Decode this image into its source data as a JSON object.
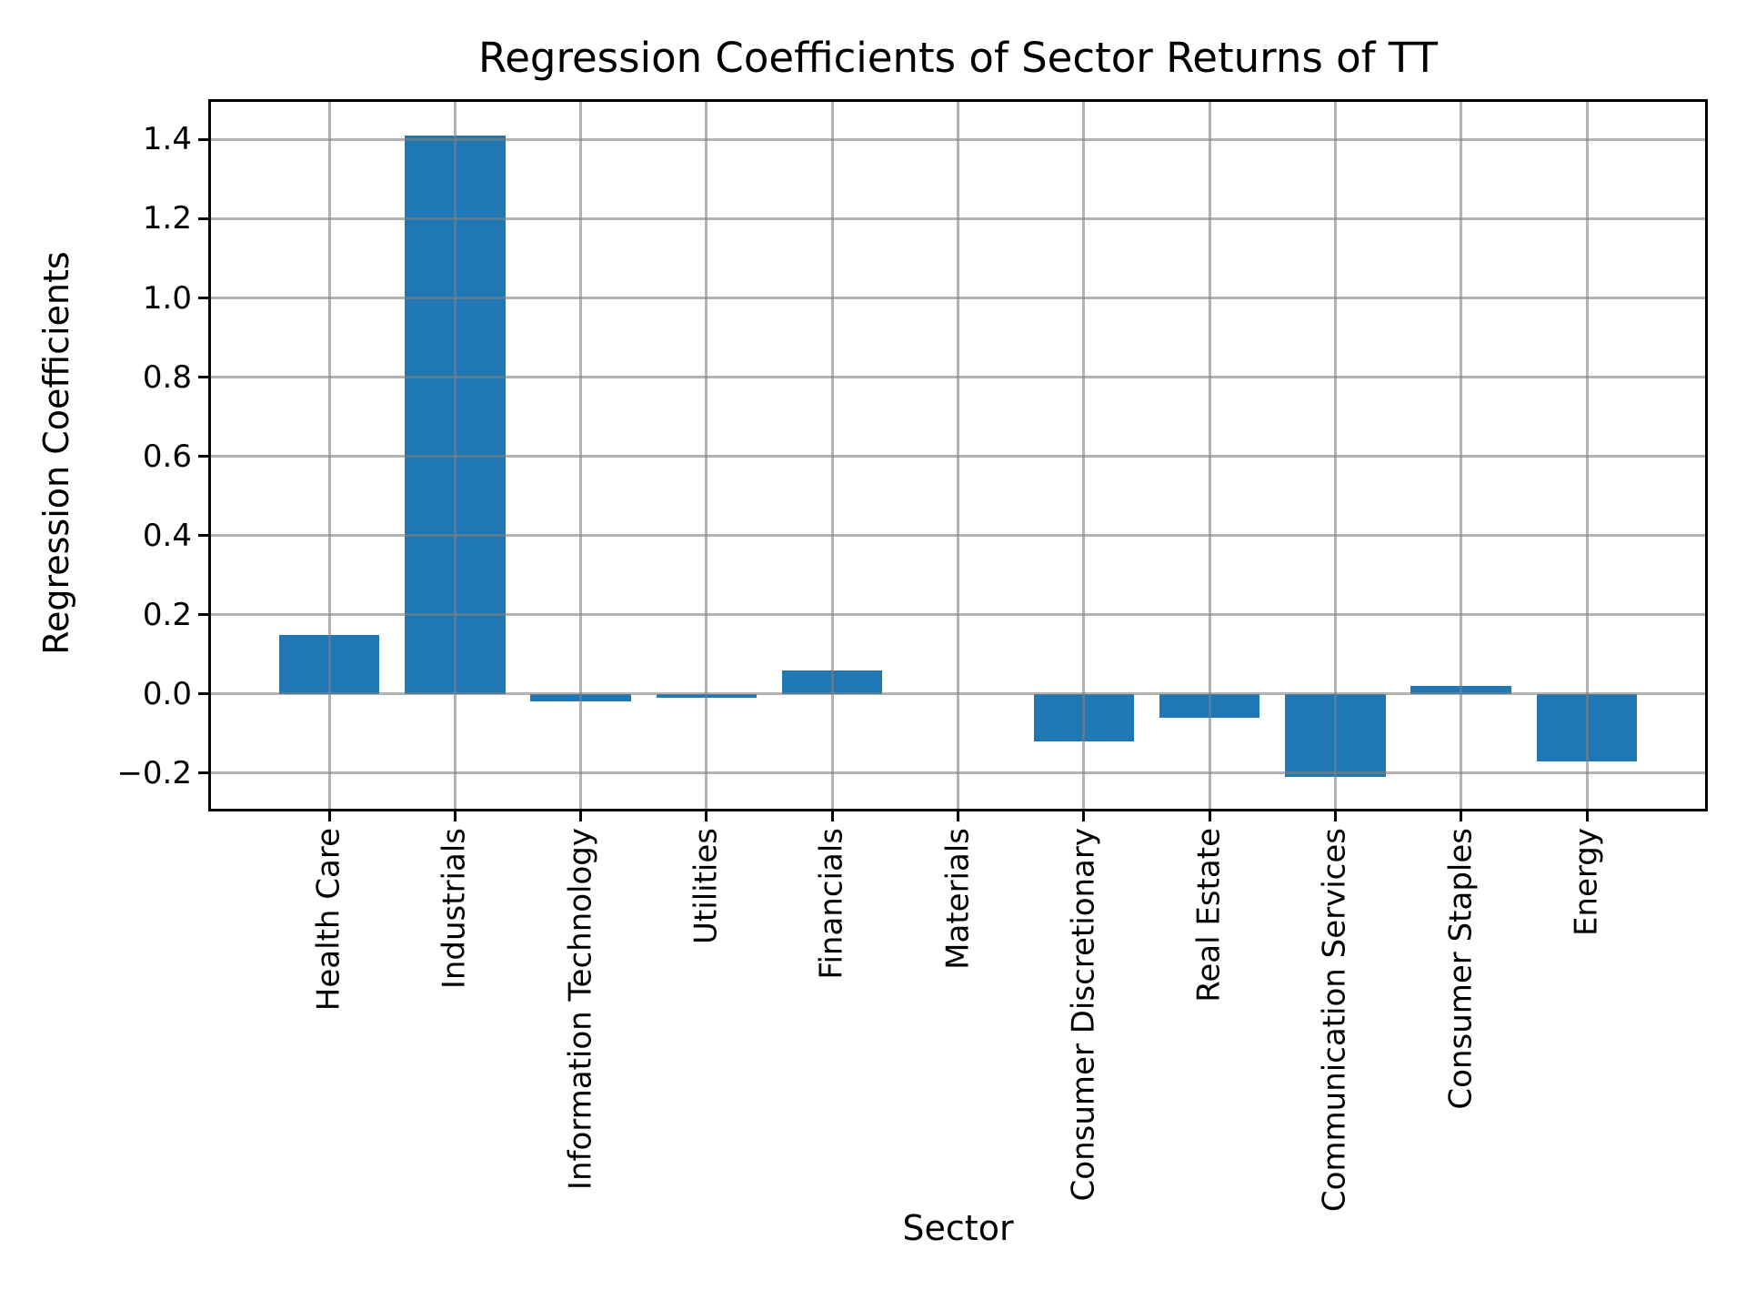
{
  "chart_data": {
    "type": "bar",
    "title": "Regression Coefficients of Sector Returns of TT",
    "xlabel": "Sector",
    "ylabel": "Regression Coefficients",
    "categories": [
      "Health Care",
      "Industrials",
      "Information Technology",
      "Utilities",
      "Financials",
      "Materials",
      "Consumer Discretionary",
      "Real Estate",
      "Communication Services",
      "Consumer Staples",
      "Energy"
    ],
    "values": [
      0.15,
      1.41,
      -0.02,
      -0.01,
      0.06,
      0.0,
      -0.12,
      -0.06,
      -0.21,
      0.02,
      -0.17
    ],
    "yticks": [
      -0.2,
      0.0,
      0.2,
      0.4,
      0.6,
      0.8,
      1.0,
      1.2,
      1.4
    ],
    "ytick_labels": [
      "−0.2",
      "0.0",
      "0.2",
      "0.4",
      "0.6",
      "0.8",
      "1.0",
      "1.2",
      "1.4"
    ],
    "ylim": [
      -0.29,
      1.495
    ],
    "grid": true,
    "legend_position": "none",
    "bar_color": "#1f77b4",
    "grid_color": "#808080",
    "axis_color": "#000000"
  }
}
